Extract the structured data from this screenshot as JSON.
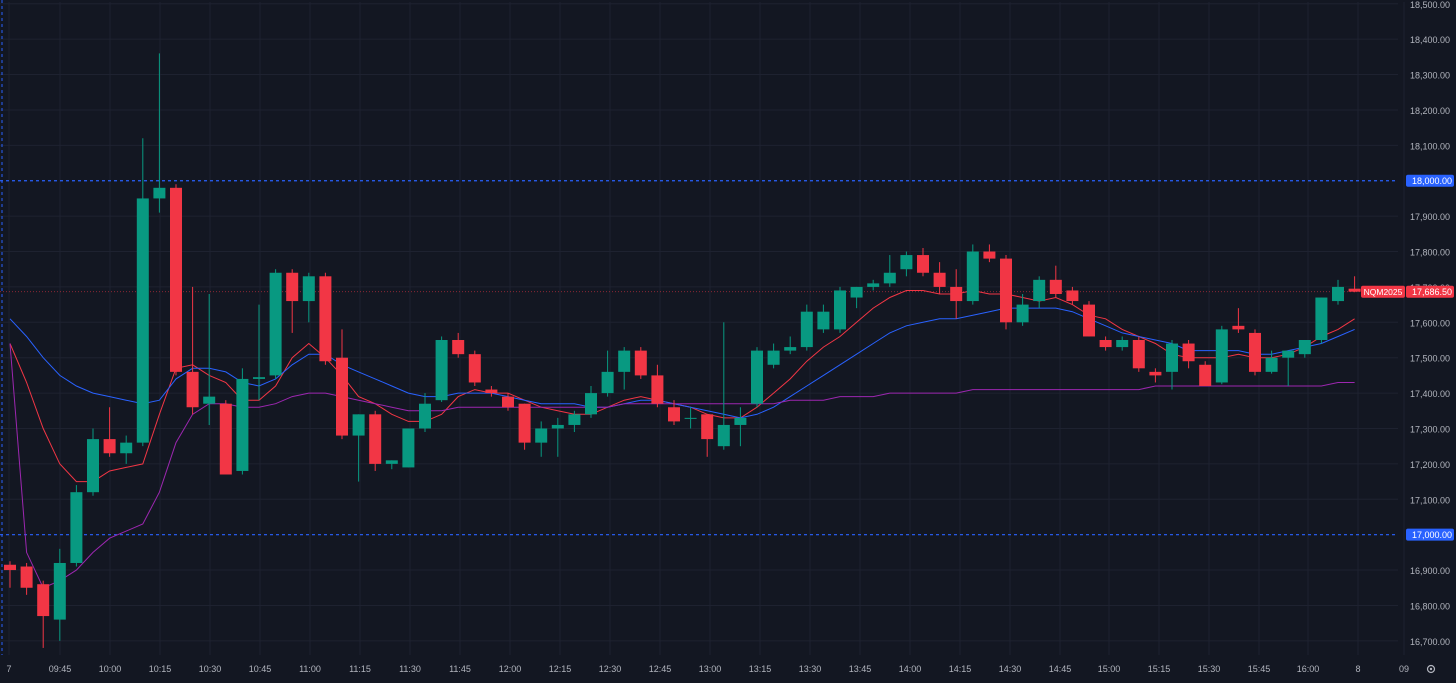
{
  "chart_data": {
    "type": "candlestick",
    "symbol": "NQM2025",
    "last_price": "17,686.50",
    "y_ticks": [
      "16,700.00",
      "16,800.00",
      "16,900.00",
      "17,100.00",
      "17,200.00",
      "17,300.00",
      "17,400.00",
      "17,500.00",
      "17,600.00",
      "17,700.00",
      "17,800.00",
      "17,900.00",
      "18,100.00",
      "18,200.00",
      "18,300.00",
      "18,400.00",
      "18,500.00"
    ],
    "y_tick_values": [
      16700,
      16800,
      16900,
      17100,
      17200,
      17300,
      17400,
      17500,
      17600,
      17700,
      17800,
      17900,
      18100,
      18200,
      18300,
      18400,
      18500
    ],
    "x_ticks": [
      "7",
      "09:45",
      "10:00",
      "10:15",
      "10:30",
      "10:45",
      "11:00",
      "11:15",
      "11:30",
      "11:45",
      "12:00",
      "12:15",
      "12:30",
      "12:45",
      "13:00",
      "13:15",
      "13:30",
      "13:45",
      "14:00",
      "14:15",
      "14:30",
      "14:45",
      "15:00",
      "15:15",
      "15:30",
      "15:45",
      "16:00",
      "8",
      "09"
    ],
    "ylim": [
      16660,
      18505
    ],
    "horizontal_levels": [
      {
        "value": 18000,
        "label": "18,000.00",
        "color": "#2962ff"
      },
      {
        "value": 17000,
        "label": "17,000.00",
        "color": "#2962ff"
      }
    ],
    "candles": [
      {
        "o": 16915,
        "h": 16925,
        "l": 16850,
        "c": 16900
      },
      {
        "o": 16910,
        "h": 16920,
        "l": 16830,
        "c": 16850
      },
      {
        "o": 16860,
        "h": 16870,
        "l": 16680,
        "c": 16770
      },
      {
        "o": 16760,
        "h": 16960,
        "l": 16700,
        "c": 16920
      },
      {
        "o": 16920,
        "h": 17140,
        "l": 16910,
        "c": 17120
      },
      {
        "o": 17120,
        "h": 17300,
        "l": 17110,
        "c": 17270
      },
      {
        "o": 17270,
        "h": 17360,
        "l": 17220,
        "c": 17230
      },
      {
        "o": 17230,
        "h": 17280,
        "l": 17200,
        "c": 17260
      },
      {
        "o": 17260,
        "h": 18120,
        "l": 17250,
        "c": 17950
      },
      {
        "o": 17950,
        "h": 18360,
        "l": 17910,
        "c": 17980
      },
      {
        "o": 17980,
        "h": 17990,
        "l": 17450,
        "c": 17460
      },
      {
        "o": 17460,
        "h": 17700,
        "l": 17340,
        "c": 17360
      },
      {
        "o": 17370,
        "h": 17680,
        "l": 17310,
        "c": 17390
      },
      {
        "o": 17370,
        "h": 17380,
        "l": 17170,
        "c": 17170
      },
      {
        "o": 17180,
        "h": 17470,
        "l": 17170,
        "c": 17440
      },
      {
        "o": 17440,
        "h": 17650,
        "l": 17380,
        "c": 17445
      },
      {
        "o": 17450,
        "h": 17750,
        "l": 17440,
        "c": 17740
      },
      {
        "o": 17740,
        "h": 17750,
        "l": 17570,
        "c": 17660
      },
      {
        "o": 17660,
        "h": 17740,
        "l": 17600,
        "c": 17730
      },
      {
        "o": 17730,
        "h": 17740,
        "l": 17480,
        "c": 17490
      },
      {
        "o": 17500,
        "h": 17580,
        "l": 17270,
        "c": 17280
      },
      {
        "o": 17280,
        "h": 17340,
        "l": 17150,
        "c": 17340
      },
      {
        "o": 17340,
        "h": 17350,
        "l": 17180,
        "c": 17200
      },
      {
        "o": 17200,
        "h": 17210,
        "l": 17185,
        "c": 17210
      },
      {
        "o": 17190,
        "h": 17300,
        "l": 17190,
        "c": 17300
      },
      {
        "o": 17300,
        "h": 17400,
        "l": 17290,
        "c": 17370
      },
      {
        "o": 17380,
        "h": 17560,
        "l": 17375,
        "c": 17550
      },
      {
        "o": 17550,
        "h": 17570,
        "l": 17500,
        "c": 17510
      },
      {
        "o": 17510,
        "h": 17520,
        "l": 17420,
        "c": 17430
      },
      {
        "o": 17410,
        "h": 17420,
        "l": 17390,
        "c": 17400
      },
      {
        "o": 17390,
        "h": 17400,
        "l": 17350,
        "c": 17360
      },
      {
        "o": 17370,
        "h": 17370,
        "l": 17240,
        "c": 17260
      },
      {
        "o": 17260,
        "h": 17320,
        "l": 17220,
        "c": 17300
      },
      {
        "o": 17300,
        "h": 17330,
        "l": 17220,
        "c": 17310
      },
      {
        "o": 17310,
        "h": 17350,
        "l": 17290,
        "c": 17340
      },
      {
        "o": 17340,
        "h": 17420,
        "l": 17330,
        "c": 17400
      },
      {
        "o": 17400,
        "h": 17520,
        "l": 17390,
        "c": 17460
      },
      {
        "o": 17460,
        "h": 17530,
        "l": 17410,
        "c": 17520
      },
      {
        "o": 17520,
        "h": 17530,
        "l": 17440,
        "c": 17450
      },
      {
        "o": 17450,
        "h": 17480,
        "l": 17360,
        "c": 17370
      },
      {
        "o": 17360,
        "h": 17380,
        "l": 17310,
        "c": 17320
      },
      {
        "o": 17330,
        "h": 17360,
        "l": 17300,
        "c": 17330
      },
      {
        "o": 17340,
        "h": 17340,
        "l": 17220,
        "c": 17270
      },
      {
        "o": 17250,
        "h": 17600,
        "l": 17240,
        "c": 17310
      },
      {
        "o": 17310,
        "h": 17360,
        "l": 17250,
        "c": 17330
      },
      {
        "o": 17370,
        "h": 17530,
        "l": 17360,
        "c": 17520
      },
      {
        "o": 17480,
        "h": 17540,
        "l": 17470,
        "c": 17520
      },
      {
        "o": 17520,
        "h": 17560,
        "l": 17510,
        "c": 17530
      },
      {
        "o": 17530,
        "h": 17650,
        "l": 17520,
        "c": 17630
      },
      {
        "o": 17580,
        "h": 17650,
        "l": 17570,
        "c": 17630
      },
      {
        "o": 17580,
        "h": 17700,
        "l": 17570,
        "c": 17690
      },
      {
        "o": 17670,
        "h": 17700,
        "l": 17640,
        "c": 17700
      },
      {
        "o": 17700,
        "h": 17720,
        "l": 17690,
        "c": 17710
      },
      {
        "o": 17710,
        "h": 17790,
        "l": 17700,
        "c": 17740
      },
      {
        "o": 17750,
        "h": 17800,
        "l": 17730,
        "c": 17790
      },
      {
        "o": 17790,
        "h": 17810,
        "l": 17730,
        "c": 17740
      },
      {
        "o": 17740,
        "h": 17770,
        "l": 17680,
        "c": 17700
      },
      {
        "o": 17700,
        "h": 17750,
        "l": 17610,
        "c": 17660
      },
      {
        "o": 17660,
        "h": 17820,
        "l": 17650,
        "c": 17800
      },
      {
        "o": 17800,
        "h": 17820,
        "l": 17770,
        "c": 17780
      },
      {
        "o": 17780,
        "h": 17790,
        "l": 17580,
        "c": 17600
      },
      {
        "o": 17600,
        "h": 17680,
        "l": 17590,
        "c": 17650
      },
      {
        "o": 17660,
        "h": 17730,
        "l": 17640,
        "c": 17720
      },
      {
        "o": 17720,
        "h": 17760,
        "l": 17670,
        "c": 17680
      },
      {
        "o": 17690,
        "h": 17700,
        "l": 17650,
        "c": 17660
      },
      {
        "o": 17650,
        "h": 17660,
        "l": 17560,
        "c": 17560
      },
      {
        "o": 17550,
        "h": 17560,
        "l": 17520,
        "c": 17530
      },
      {
        "o": 17530,
        "h": 17560,
        "l": 17520,
        "c": 17550
      },
      {
        "o": 17550,
        "h": 17560,
        "l": 17460,
        "c": 17470
      },
      {
        "o": 17460,
        "h": 17470,
        "l": 17430,
        "c": 17450
      },
      {
        "o": 17460,
        "h": 17550,
        "l": 17410,
        "c": 17540
      },
      {
        "o": 17540,
        "h": 17550,
        "l": 17470,
        "c": 17490
      },
      {
        "o": 17480,
        "h": 17490,
        "l": 17420,
        "c": 17420
      },
      {
        "o": 17430,
        "h": 17590,
        "l": 17425,
        "c": 17580
      },
      {
        "o": 17590,
        "h": 17640,
        "l": 17570,
        "c": 17580
      },
      {
        "o": 17570,
        "h": 17580,
        "l": 17450,
        "c": 17460
      },
      {
        "o": 17460,
        "h": 17520,
        "l": 17455,
        "c": 17500
      },
      {
        "o": 17500,
        "h": 17510,
        "l": 17420,
        "c": 17520
      },
      {
        "o": 17510,
        "h": 17540,
        "l": 17500,
        "c": 17550
      },
      {
        "o": 17550,
        "h": 17670,
        "l": 17540,
        "c": 17670
      },
      {
        "o": 17660,
        "h": 17720,
        "l": 17650,
        "c": 17700
      },
      {
        "o": 17695,
        "h": 17730,
        "l": 17685,
        "c": 17686.5
      }
    ],
    "ma_lines": [
      {
        "color": "#f23645",
        "values": [
          17540,
          17430,
          17300,
          17200,
          17150,
          17150,
          17180,
          17190,
          17200,
          17340,
          17470,
          17480,
          17450,
          17430,
          17380,
          17380,
          17420,
          17500,
          17540,
          17500,
          17450,
          17390,
          17370,
          17340,
          17320,
          17320,
          17340,
          17390,
          17410,
          17400,
          17400,
          17380,
          17360,
          17350,
          17340,
          17340,
          17360,
          17380,
          17390,
          17380,
          17370,
          17360,
          17340,
          17330,
          17330,
          17360,
          17400,
          17440,
          17490,
          17530,
          17560,
          17600,
          17640,
          17670,
          17690,
          17690,
          17680,
          17680,
          17690,
          17680,
          17680,
          17670,
          17660,
          17670,
          17650,
          17620,
          17610,
          17580,
          17560,
          17540,
          17510,
          17500,
          17500,
          17500,
          17510,
          17500,
          17500,
          17510,
          17530,
          17560,
          17580,
          17610
        ]
      },
      {
        "color": "#2962ff",
        "values": [
          17610,
          17560,
          17500,
          17450,
          17420,
          17400,
          17390,
          17380,
          17370,
          17380,
          17440,
          17470,
          17470,
          17460,
          17430,
          17420,
          17440,
          17480,
          17510,
          17510,
          17480,
          17460,
          17440,
          17420,
          17400,
          17390,
          17390,
          17400,
          17400,
          17400,
          17390,
          17380,
          17370,
          17370,
          17370,
          17360,
          17360,
          17370,
          17380,
          17380,
          17370,
          17360,
          17350,
          17340,
          17330,
          17340,
          17360,
          17390,
          17420,
          17450,
          17480,
          17510,
          17540,
          17570,
          17590,
          17600,
          17610,
          17610,
          17620,
          17630,
          17640,
          17640,
          17640,
          17640,
          17630,
          17610,
          17590,
          17570,
          17560,
          17550,
          17540,
          17520,
          17520,
          17520,
          17520,
          17510,
          17510,
          17520,
          17530,
          17540,
          17560,
          17580
        ]
      },
      {
        "color": "#9c27b0",
        "values": [
          17540,
          16950,
          16850,
          16870,
          16900,
          16950,
          16990,
          17010,
          17030,
          17120,
          17260,
          17340,
          17370,
          17370,
          17360,
          17360,
          17370,
          17390,
          17400,
          17400,
          17390,
          17380,
          17370,
          17360,
          17350,
          17350,
          17350,
          17360,
          17360,
          17360,
          17360,
          17360,
          17360,
          17360,
          17360,
          17360,
          17360,
          17370,
          17370,
          17370,
          17370,
          17370,
          17370,
          17370,
          17370,
          17370,
          17370,
          17380,
          17380,
          17380,
          17390,
          17390,
          17390,
          17400,
          17400,
          17400,
          17400,
          17400,
          17410,
          17410,
          17410,
          17410,
          17410,
          17410,
          17410,
          17410,
          17410,
          17410,
          17410,
          17420,
          17420,
          17420,
          17420,
          17420,
          17420,
          17420,
          17420,
          17420,
          17420,
          17420,
          17430,
          17430
        ]
      }
    ],
    "colors": {
      "up": "#089981",
      "down": "#f23645",
      "background": "#131722",
      "grid": "#1e2230",
      "axis_text": "#b2b5be"
    },
    "grid": true
  }
}
